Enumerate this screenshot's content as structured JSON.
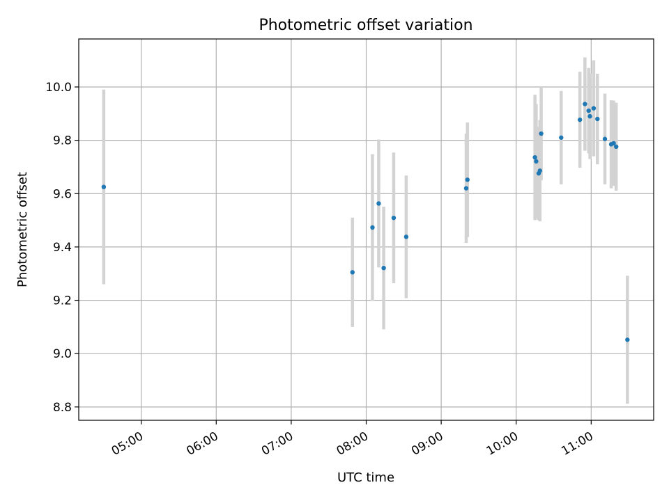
{
  "chart_data": {
    "type": "scatter",
    "title": "Photometric offset variation",
    "xlabel": "UTC time",
    "ylabel": "Photometric offset",
    "xlim": [
      "04:10",
      "11:50"
    ],
    "ylim": [
      8.75,
      10.18
    ],
    "grid": true,
    "x_tick_labels": [
      "05:00",
      "06:00",
      "07:00",
      "08:00",
      "09:00",
      "10:00",
      "11:00"
    ],
    "y_tick_labels": [
      "8.8",
      "9.0",
      "9.2",
      "9.4",
      "9.6",
      "9.8",
      "10.0"
    ],
    "colors": {
      "point": "#1f77b4",
      "errorbar": "#d3d3d3",
      "grid": "#b0b0b0"
    },
    "points": [
      {
        "x": "04:30",
        "y": 9.625,
        "err": 0.365
      },
      {
        "x": "07:49",
        "y": 9.305,
        "err": 0.205
      },
      {
        "x": "08:05",
        "y": 9.473,
        "err": 0.275
      },
      {
        "x": "08:10",
        "y": 9.563,
        "err": 0.24
      },
      {
        "x": "08:14",
        "y": 9.321,
        "err": 0.23
      },
      {
        "x": "08:22",
        "y": 9.509,
        "err": 0.245
      },
      {
        "x": "08:32",
        "y": 9.438,
        "err": 0.23
      },
      {
        "x": "09:20",
        "y": 9.62,
        "err": 0.205
      },
      {
        "x": "09:21",
        "y": 9.652,
        "err": 0.215
      },
      {
        "x": "10:15",
        "y": 9.736,
        "err": 0.235
      },
      {
        "x": "10:16",
        "y": 9.721,
        "err": 0.215
      },
      {
        "x": "10:18",
        "y": 9.676,
        "err": 0.175
      },
      {
        "x": "10:19",
        "y": 9.686,
        "err": 0.19
      },
      {
        "x": "10:20",
        "y": 9.825,
        "err": 0.175
      },
      {
        "x": "10:36",
        "y": 9.81,
        "err": 0.175
      },
      {
        "x": "10:51",
        "y": 9.877,
        "err": 0.18
      },
      {
        "x": "10:55",
        "y": 9.936,
        "err": 0.175
      },
      {
        "x": "10:58",
        "y": 9.911,
        "err": 0.16
      },
      {
        "x": "10:59",
        "y": 9.89,
        "err": 0.16
      },
      {
        "x": "11:02",
        "y": 9.92,
        "err": 0.18
      },
      {
        "x": "11:05",
        "y": 9.88,
        "err": 0.17
      },
      {
        "x": "11:11",
        "y": 9.805,
        "err": 0.17
      },
      {
        "x": "11:16",
        "y": 9.785,
        "err": 0.165
      },
      {
        "x": "11:18",
        "y": 9.789,
        "err": 0.16
      },
      {
        "x": "11:20",
        "y": 9.776,
        "err": 0.165
      },
      {
        "x": "11:29",
        "y": 9.052,
        "err": 0.24
      }
    ]
  }
}
